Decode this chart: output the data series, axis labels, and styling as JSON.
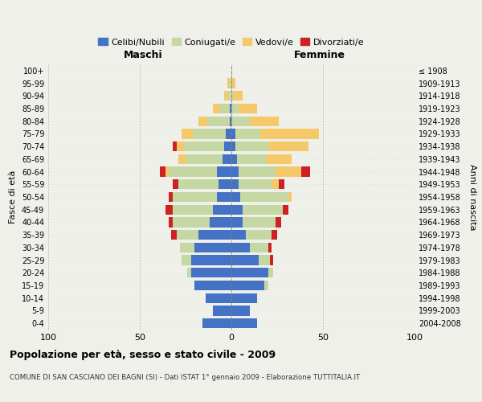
{
  "age_groups": [
    "0-4",
    "5-9",
    "10-14",
    "15-19",
    "20-24",
    "25-29",
    "30-34",
    "35-39",
    "40-44",
    "45-49",
    "50-54",
    "55-59",
    "60-64",
    "65-69",
    "70-74",
    "75-79",
    "80-84",
    "85-89",
    "90-94",
    "95-99",
    "100+"
  ],
  "birth_years": [
    "2004-2008",
    "1999-2003",
    "1994-1998",
    "1989-1993",
    "1984-1988",
    "1979-1983",
    "1974-1978",
    "1969-1973",
    "1964-1968",
    "1959-1963",
    "1954-1958",
    "1949-1953",
    "1944-1948",
    "1939-1943",
    "1934-1938",
    "1929-1933",
    "1924-1928",
    "1919-1923",
    "1914-1918",
    "1909-1913",
    "≤ 1908"
  ],
  "colors": {
    "celibi": "#4472c4",
    "coniugati": "#c5d8a4",
    "vedovi": "#f5c96a",
    "divorziati": "#cc2222"
  },
  "title": "Popolazione per età, sesso e stato civile - 2009",
  "subtitle": "COMUNE DI SAN CASCIANO DEI BAGNI (SI) - Dati ISTAT 1° gennaio 2009 - Elaborazione TUTTITALIA.IT",
  "xlabel_left": "Maschi",
  "xlabel_right": "Femmine",
  "ylabel": "Fasce di età",
  "ylabel_right": "Anni di nascita",
  "xlim": 100,
  "legend_labels": [
    "Celibi/Nubili",
    "Coniugati/e",
    "Vedovi/e",
    "Divorziati/e"
  ],
  "bg_color": "#f0f0eb",
  "male_celibi": [
    16,
    10,
    14,
    20,
    22,
    22,
    20,
    18,
    12,
    10,
    8,
    7,
    8,
    5,
    4,
    3,
    1,
    1,
    0,
    0,
    0
  ],
  "male_coniugati": [
    0,
    0,
    0,
    0,
    2,
    5,
    8,
    12,
    20,
    22,
    24,
    22,
    26,
    20,
    22,
    18,
    12,
    5,
    2,
    1,
    0
  ],
  "male_vedovi": [
    0,
    0,
    0,
    0,
    0,
    0,
    0,
    0,
    0,
    0,
    0,
    0,
    2,
    4,
    4,
    6,
    5,
    4,
    2,
    1,
    0
  ],
  "male_divorziati": [
    0,
    0,
    0,
    0,
    0,
    0,
    0,
    3,
    2,
    4,
    2,
    3,
    3,
    0,
    2,
    0,
    0,
    0,
    0,
    0,
    0
  ],
  "fem_nubili": [
    14,
    10,
    14,
    18,
    20,
    15,
    10,
    8,
    6,
    6,
    5,
    4,
    4,
    3,
    2,
    2,
    0,
    0,
    0,
    0,
    0
  ],
  "fem_coniugate": [
    0,
    0,
    0,
    2,
    3,
    6,
    10,
    14,
    18,
    22,
    26,
    18,
    20,
    16,
    18,
    14,
    10,
    4,
    1,
    0,
    0
  ],
  "fem_vedove": [
    0,
    0,
    0,
    0,
    0,
    0,
    0,
    0,
    0,
    0,
    2,
    4,
    14,
    14,
    22,
    32,
    16,
    10,
    5,
    2,
    0
  ],
  "fem_divorziate": [
    0,
    0,
    0,
    0,
    0,
    2,
    2,
    3,
    3,
    3,
    0,
    3,
    5,
    0,
    0,
    0,
    0,
    0,
    0,
    0,
    0
  ]
}
